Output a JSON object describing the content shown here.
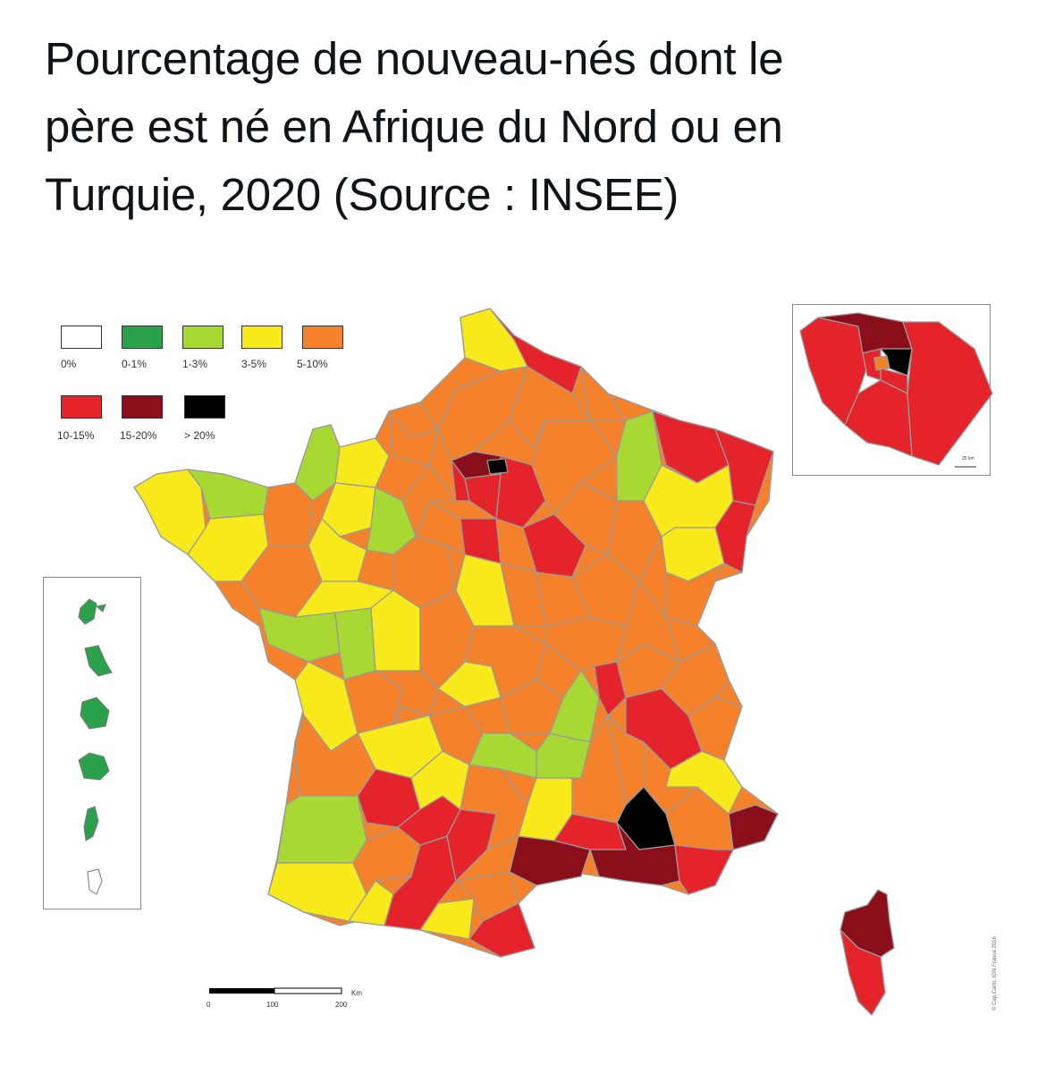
{
  "title_lines": [
    "Pourcentage de nouveau-nés dont le",
    "père est né en Afrique du Nord ou en",
    "Turquie, 2020 (Source : INSEE)"
  ],
  "legend": [
    {
      "label": "0%",
      "color": "#ffffff"
    },
    {
      "label": "0-1%",
      "color": "#2aa14a"
    },
    {
      "label": "1-3%",
      "color": "#a8d832"
    },
    {
      "label": "3-5%",
      "color": "#f7e91a"
    },
    {
      "label": "5-10%",
      "color": "#f5822b"
    },
    {
      "label": "10-15%",
      "color": "#e4232b"
    },
    {
      "label": "15-20%",
      "color": "#8a0f1a"
    },
    {
      "label": "> 20%",
      "color": "#000000"
    }
  ],
  "scale": {
    "unit": "Km",
    "ticks": [
      "0",
      "100",
      "200"
    ],
    "inset_scale": "25 km"
  },
  "credit": "© Cap Carto, IGN France 2016"
}
